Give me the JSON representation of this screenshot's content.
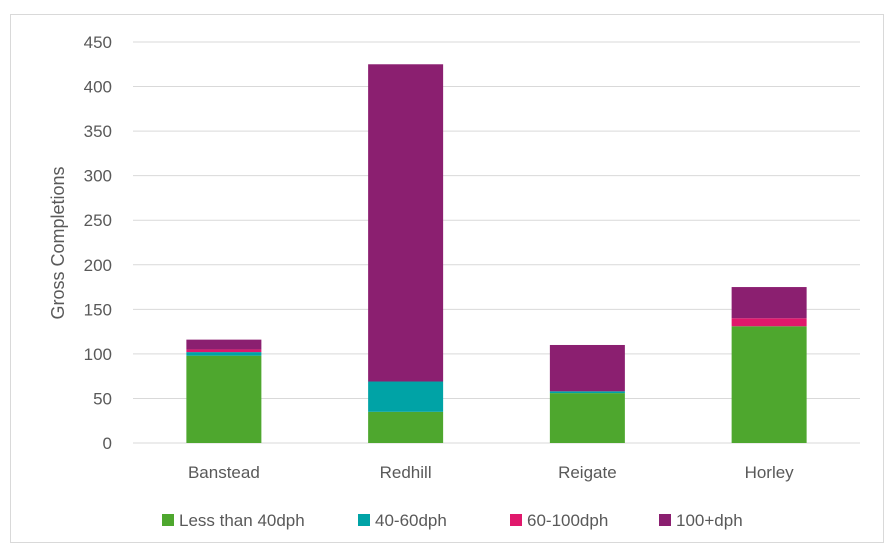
{
  "chart_data": {
    "type": "bar",
    "stacked": true,
    "title": "",
    "xlabel": "",
    "ylabel": "Gross Completions",
    "ylim": [
      0,
      450
    ],
    "yticks": [
      0,
      50,
      100,
      150,
      200,
      250,
      300,
      350,
      400,
      450
    ],
    "grid": true,
    "legend_position": "bottom",
    "categories": [
      "Banstead",
      "Redhill",
      "Reigate",
      "Horley"
    ],
    "series": [
      {
        "name": "Less than 40dph",
        "color": "#4ea72e",
        "values": [
          98,
          35,
          56,
          131
        ]
      },
      {
        "name": "40-60dph",
        "color": "#00a3a6",
        "values": [
          4,
          34,
          2,
          0
        ]
      },
      {
        "name": "60-100dph",
        "color": "#e0186c",
        "values": [
          3,
          0,
          0,
          9
        ]
      },
      {
        "name": "100+dph",
        "color": "#8b1f70",
        "values": [
          11,
          356,
          52,
          35
        ]
      }
    ]
  }
}
